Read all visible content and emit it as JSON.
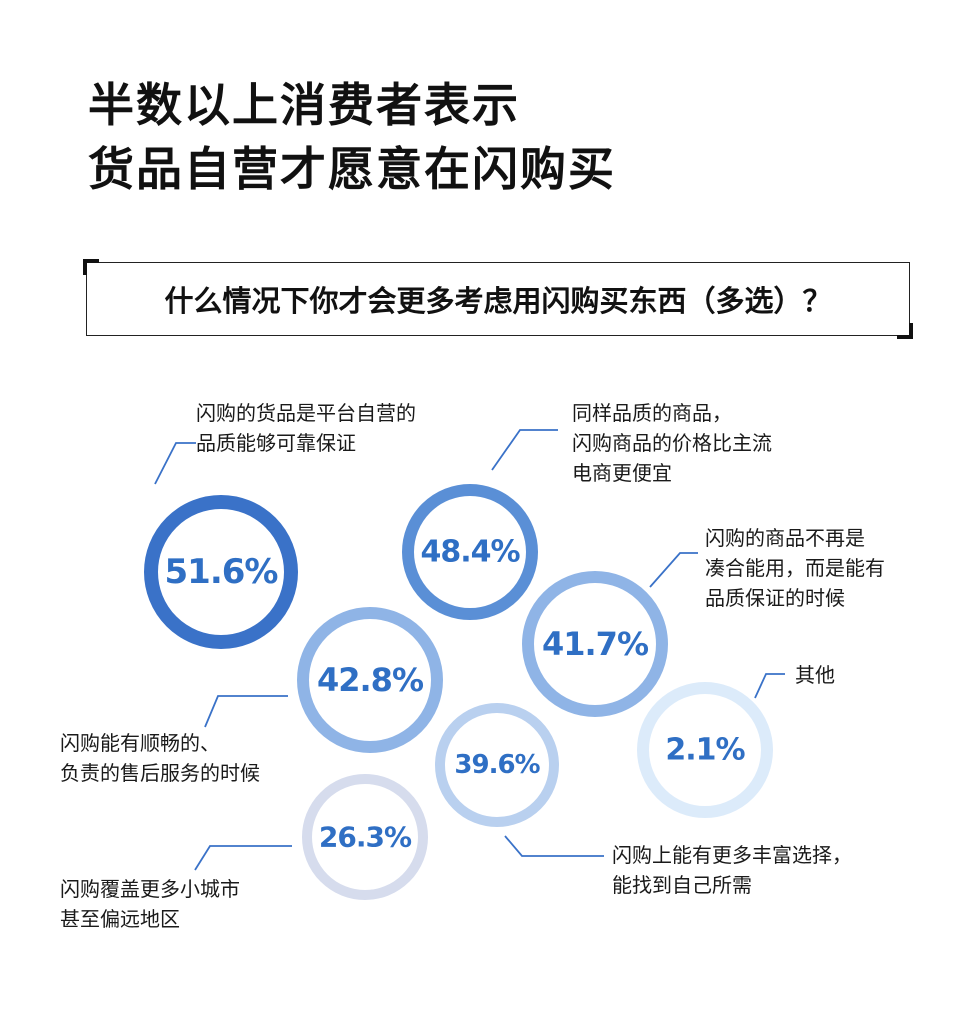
{
  "title": {
    "line1": "半数以上消费者表示",
    "line2": "货品自营才愿意在闪购买"
  },
  "question": "什么情况下你才会更多考虑用闪购买东西（多选）？",
  "colors": {
    "dark": "#3a72c8",
    "mid": "#5a8fd6",
    "light": "#8fb4e6",
    "lighter": "#b9d0ef",
    "palest": "#dcebfa",
    "grey": "#d6dced",
    "text": "#2f6fc4"
  },
  "chart_data": {
    "type": "bubble",
    "items": [
      {
        "label_lines": [
          "闪购的货品是平台自营的",
          "品质能够可靠保证"
        ],
        "value": 51.6,
        "display": "51.6%",
        "color": "#3a72c8"
      },
      {
        "label_lines": [
          "同样品质的商品，",
          "闪购商品的价格比主流",
          "电商更便宜"
        ],
        "value": 48.4,
        "display": "48.4%",
        "color": "#5a8fd6"
      },
      {
        "label_lines": [
          "闪购能有顺畅的、",
          "负责的售后服务的时候"
        ],
        "value": 42.8,
        "display": "42.8%",
        "color": "#8fb4e6"
      },
      {
        "label_lines": [
          "闪购的商品不再是",
          "凑合能用，而是能有",
          "品质保证的时候"
        ],
        "value": 41.7,
        "display": "41.7%",
        "color": "#8fb4e6"
      },
      {
        "label_lines": [
          "闪购上能有更多丰富选择，",
          "能找到自己所需"
        ],
        "value": 39.6,
        "display": "39.6%",
        "color": "#b9d0ef"
      },
      {
        "label_lines": [
          "闪购覆盖更多小城市",
          "甚至偏远地区"
        ],
        "value": 26.3,
        "display": "26.3%",
        "color": "#d6dced"
      },
      {
        "label_lines": [
          "其他"
        ],
        "value": 2.1,
        "display": "2.1%",
        "color": "#dcebfa"
      }
    ]
  }
}
